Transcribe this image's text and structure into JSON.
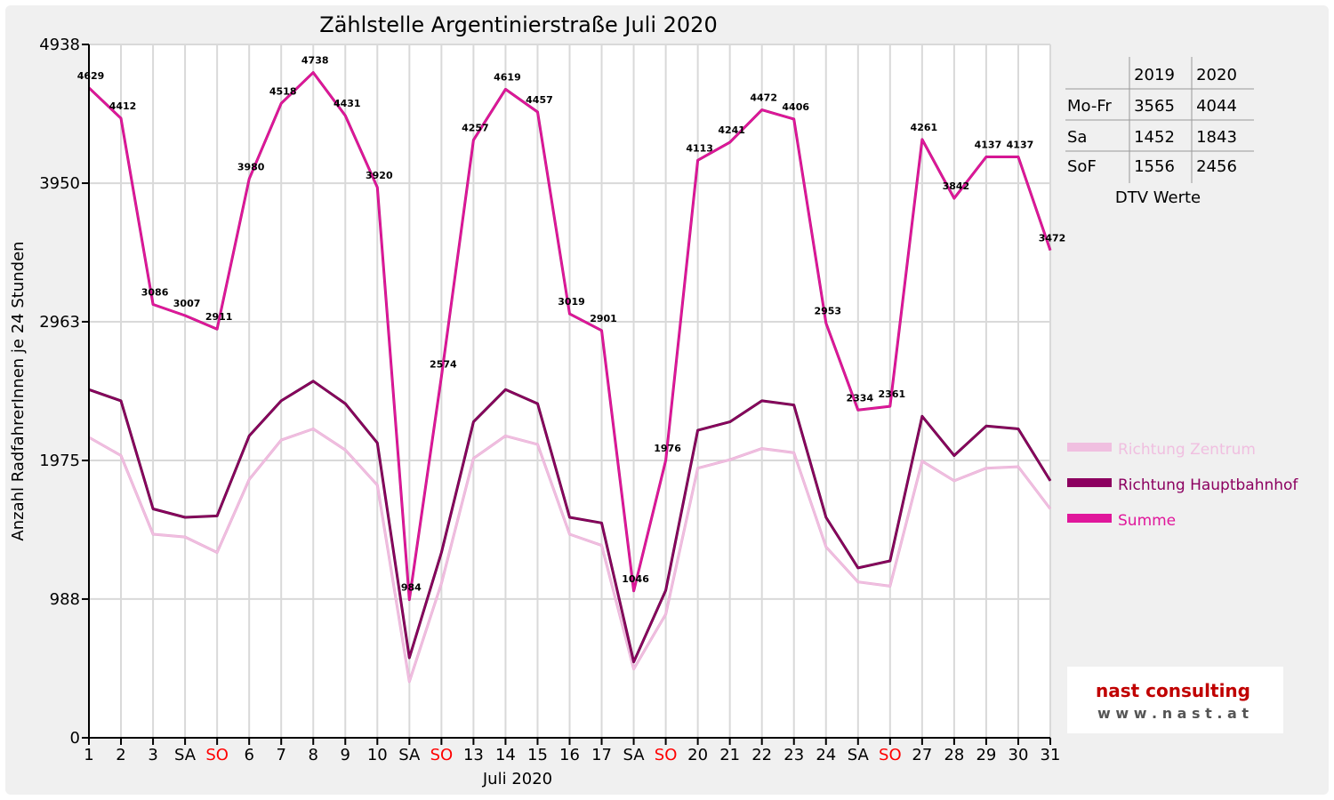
{
  "chart_data": {
    "type": "line",
    "title": "Zählstelle Argentinierstraße Juli 2020",
    "ylabel": "Anzahl RadfahrerInnen je 24 Stunden",
    "xlabel": "Juli 2020",
    "ylim": [
      0,
      4938
    ],
    "yticks": [
      "4938",
      "3950",
      "2963",
      "1975",
      "988",
      "0"
    ],
    "ytick_values": [
      4938,
      3950,
      2963,
      1975,
      988,
      0
    ],
    "x": [
      1,
      2,
      3,
      4,
      5,
      6,
      7,
      8,
      9,
      10,
      11,
      12,
      13,
      14,
      15,
      16,
      17,
      18,
      19,
      20,
      21,
      22,
      23,
      24,
      25,
      26,
      27,
      28,
      29,
      30,
      31
    ],
    "categories": [
      "1",
      "2",
      "3",
      "SA",
      "SO",
      "6",
      "7",
      "8",
      "9",
      "10",
      "SA",
      "SO",
      "13",
      "14",
      "15",
      "16",
      "17",
      "SA",
      "SO",
      "20",
      "21",
      "22",
      "23",
      "24",
      "SA",
      "SO",
      "27",
      "28",
      "29",
      "30",
      "31"
    ],
    "weekend_color": "#ff0000",
    "grid": true,
    "series": [
      {
        "name": "Richtung Zentrum",
        "color": "#f0bfe0",
        "values": [
          2140,
          2010,
          1450,
          1430,
          1320,
          1840,
          2120,
          2200,
          2050,
          1800,
          400,
          1100,
          1990,
          2150,
          2090,
          1450,
          1370,
          490,
          880,
          1920,
          1980,
          2060,
          2030,
          1360,
          1110,
          1080,
          1970,
          1830,
          1920,
          1930,
          1630
        ]
      },
      {
        "name": "Richtung Hauptbahnhof",
        "color": "#8c0060",
        "values": [
          2480,
          2400,
          1630,
          1570,
          1580,
          2150,
          2400,
          2540,
          2380,
          2100,
          570,
          1320,
          2250,
          2480,
          2380,
          1570,
          1530,
          540,
          1050,
          2190,
          2250,
          2400,
          2370,
          1570,
          1210,
          1260,
          2290,
          2010,
          2220,
          2200,
          1830
        ]
      },
      {
        "name": "Summe",
        "color": "#e0179b",
        "values": [
          4629,
          4412,
          3086,
          3007,
          2911,
          3980,
          4518,
          4738,
          4431,
          3920,
          984,
          2574,
          4257,
          4619,
          4457,
          3019,
          2901,
          1046,
          1976,
          4113,
          4241,
          4472,
          4406,
          2953,
          2334,
          2361,
          4261,
          3842,
          4137,
          4137,
          3472
        ],
        "labels": [
          "4629",
          "4412",
          "3086",
          "3007",
          "2911",
          "3980",
          "4518",
          "4738",
          "4431",
          "3920",
          "984",
          "2574",
          "4257",
          "4619",
          "4457",
          "3019",
          "2901",
          "1046",
          "1976",
          "4113",
          "4241",
          "4472",
          "4406",
          "2953",
          "2334",
          "2361",
          "4261",
          "3842",
          "4137",
          "4137",
          "3472"
        ]
      }
    ],
    "legend_position": "right",
    "table": {
      "columns": [
        "",
        "2019",
        "2020"
      ],
      "rows": [
        [
          "Mo-Fr",
          "3565",
          "4044"
        ],
        [
          "Sa",
          "1452",
          "1843"
        ],
        [
          "SoF",
          "1556",
          "2456"
        ]
      ],
      "caption": "DTV Werte"
    }
  },
  "logo": {
    "name": "nast consulting",
    "url": "w w w . n a s t . a t"
  }
}
